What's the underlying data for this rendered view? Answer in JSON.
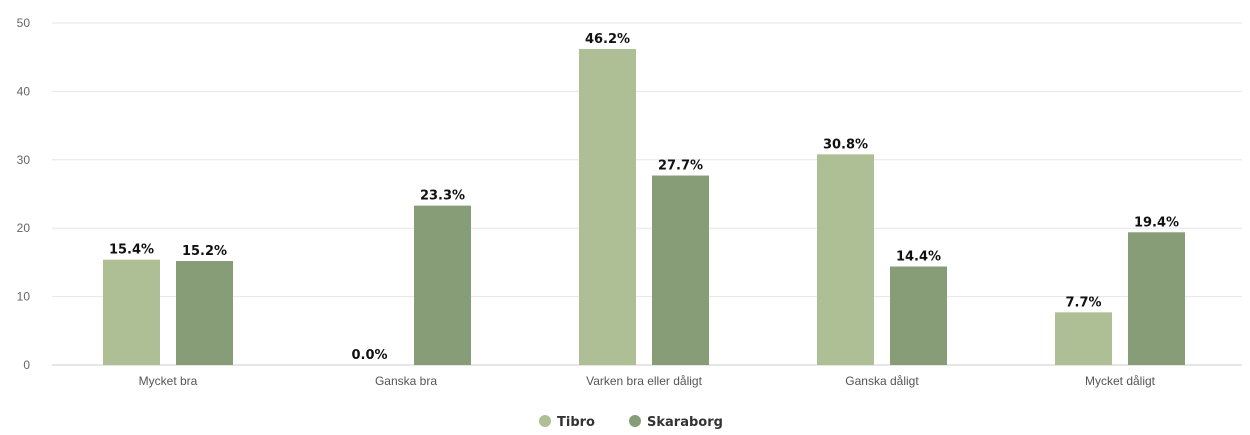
{
  "chart_data": {
    "type": "bar",
    "categories": [
      "Mycket bra",
      "Ganska bra",
      "Varken bra eller dåligt",
      "Ganska dåligt",
      "Mycket dåligt"
    ],
    "series": [
      {
        "name": "Tibro",
        "color": "#aebf96",
        "values": [
          15.4,
          0.0,
          46.2,
          30.8,
          7.7
        ],
        "labels": [
          "15.4%",
          "0.0%",
          "46.2%",
          "30.8%",
          "7.7%"
        ]
      },
      {
        "name": "Skaraborg",
        "color": "#869d78",
        "values": [
          15.2,
          23.3,
          27.7,
          14.4,
          19.4
        ],
        "labels": [
          "15.2%",
          "23.3%",
          "27.7%",
          "14.4%",
          "19.4%"
        ]
      }
    ],
    "title": "",
    "xlabel": "",
    "ylabel": "",
    "ylim": [
      0,
      50
    ],
    "yticks": [
      0,
      10,
      20,
      30,
      40,
      50
    ],
    "grid": true,
    "legend_position": "bottom-center"
  }
}
